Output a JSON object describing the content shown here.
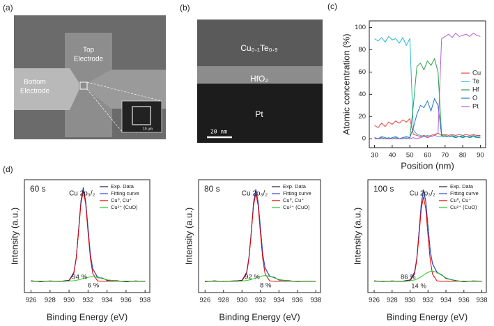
{
  "panel_labels": [
    "(a)",
    "(b)",
    "(c)",
    "(d)"
  ],
  "sem": {
    "top_electrode": [
      "Top",
      "Electrode"
    ],
    "bottom_electrode": [
      "Bottom",
      "Electrode"
    ],
    "inset_scale": "10 µm"
  },
  "tem": {
    "layer_top": "Cu₀.₁Te₀.₉",
    "layer_middle": "HfO₂",
    "layer_bottom": "Pt",
    "scale_bar": "20 nm"
  },
  "chart_data": [
    {
      "type": "line",
      "xlabel": "Position (nm)",
      "ylabel": "Atomic concentration (%)",
      "x": [
        30,
        32,
        34,
        36,
        38,
        40,
        42,
        44,
        46,
        48,
        50,
        52,
        54,
        56,
        58,
        60,
        62,
        64,
        66,
        68,
        70,
        72,
        74,
        76,
        78,
        80,
        82,
        84,
        86,
        88,
        90
      ],
      "xlim": [
        27,
        93
      ],
      "xticks": [
        30,
        40,
        50,
        60,
        70,
        80,
        90
      ],
      "ylim": [
        -8,
        106
      ],
      "yticks": [
        0,
        20,
        40,
        60,
        80,
        100
      ],
      "legend": "right",
      "series": [
        {
          "name": "Cu",
          "color": "#e8413c",
          "values": [
            12,
            10,
            14,
            11,
            15,
            13,
            16,
            14,
            17,
            15,
            18,
            4,
            3,
            2,
            3,
            2,
            3,
            4,
            5,
            3,
            4,
            3,
            4,
            3,
            4,
            3,
            4,
            3,
            4,
            3,
            3
          ]
        },
        {
          "name": "Te",
          "color": "#22b8c8",
          "values": [
            90,
            88,
            91,
            87,
            92,
            89,
            90,
            86,
            91,
            84,
            90,
            8,
            4,
            3,
            2,
            3,
            2,
            3,
            2,
            2,
            2,
            2,
            3,
            2,
            2,
            3,
            2,
            2,
            3,
            2,
            2
          ]
        },
        {
          "name": "Hf",
          "color": "#2aa04a",
          "values": [
            1,
            0,
            1,
            0,
            1,
            0,
            1,
            0,
            1,
            0,
            1,
            30,
            65,
            68,
            62,
            70,
            66,
            72,
            60,
            4,
            3,
            2,
            2,
            2,
            2,
            2,
            2,
            2,
            2,
            2,
            2
          ]
        },
        {
          "name": "O",
          "color": "#1f77d4",
          "values": [
            1,
            0,
            2,
            1,
            0,
            1,
            2,
            0,
            1,
            2,
            1,
            10,
            22,
            30,
            28,
            34,
            25,
            36,
            30,
            3,
            2,
            2,
            2,
            1,
            2,
            1,
            2,
            1,
            2,
            1,
            1
          ]
        },
        {
          "name": "Pt",
          "color": "#b45fd6",
          "values": [
            0,
            0,
            0,
            0,
            0,
            0,
            0,
            0,
            0,
            1,
            0,
            1,
            0,
            1,
            2,
            1,
            2,
            3,
            5,
            90,
            92,
            94,
            91,
            95,
            92,
            93,
            94,
            92,
            95,
            93,
            92
          ]
        }
      ]
    },
    {
      "type": "line",
      "label": "60 s",
      "peak_label": "Cu 2p₃/₂",
      "annotations": [
        "94 %",
        "6 %"
      ],
      "xlabel": "Binding Energy (eV)",
      "ylabel": "Intensity (a.u.)",
      "x": [
        926,
        927,
        928,
        929,
        929.5,
        930,
        930.5,
        930.75,
        931,
        931.25,
        931.5,
        931.75,
        932,
        932.25,
        932.5,
        933,
        933.5,
        934,
        935,
        936,
        937,
        938
      ],
      "xlim": [
        925.3,
        938.5
      ],
      "xticks": [
        926,
        928,
        930,
        932,
        934,
        936,
        938
      ],
      "ylim": [
        0,
        100
      ],
      "legend": "upper right",
      "series": [
        {
          "name": "Exp. Data",
          "color": "#1a1a4a",
          "values": [
            10.5,
            9.6,
            10.3,
            9.8,
            10.4,
            10.9,
            17.8,
            30.2,
            55.3,
            81.2,
            93.1,
            80.9,
            57.4,
            33.1,
            21.2,
            13.2,
            12.9,
            10.8,
            10.6,
            9.5,
            10.3,
            9.8
          ]
        },
        {
          "name": "Fitting curve",
          "color": "#2f4fd0",
          "values": [
            10,
            10,
            10,
            10,
            10,
            10.5,
            17.3,
            30.8,
            54.5,
            80.4,
            92.4,
            81.6,
            56.7,
            33.8,
            20.8,
            13.8,
            12.4,
            11.3,
            10.2,
            10,
            10,
            10
          ]
        },
        {
          "name": "Cu⁰, Cu⁺",
          "color": "#e00000",
          "values": [
            10,
            10,
            10,
            10,
            10,
            10.3,
            16.8,
            29.9,
            53.2,
            78.6,
            90,
            78.6,
            53.2,
            29.9,
            16.8,
            10.3,
            10,
            10,
            10,
            10,
            10,
            10
          ]
        },
        {
          "name": "Cu²⁺ (CuO)",
          "color": "#22cc22",
          "values": [
            10,
            10,
            10,
            10,
            10,
            10.2,
            10.5,
            10.9,
            11.3,
            11.8,
            12.4,
            13,
            13.5,
            13.9,
            14,
            13.5,
            12.4,
            11.3,
            10.2,
            10,
            10,
            10
          ]
        }
      ]
    },
    {
      "type": "line",
      "label": "80 s",
      "peak_label": "Cu 2p₃/₂",
      "annotations": [
        "92 %",
        "8 %"
      ],
      "xlabel": "Binding Energy (eV)",
      "ylabel": "Intensity (a.u.)",
      "x": [
        926,
        927,
        928,
        929,
        929.5,
        930,
        930.5,
        930.75,
        931,
        931.25,
        931.5,
        931.75,
        932,
        932.25,
        932.5,
        933,
        933.5,
        934,
        935,
        936,
        937,
        938
      ],
      "xlim": [
        925.3,
        938.5
      ],
      "xticks": [
        926,
        928,
        930,
        932,
        934,
        936,
        938
      ],
      "ylim": [
        0,
        100
      ],
      "legend": "upper right",
      "series": [
        {
          "name": "Exp. Data",
          "color": "#1a1a4a",
          "values": [
            9.6,
            10.4,
            9.8,
            10.3,
            10.5,
            10.9,
            17.9,
            31.2,
            53.1,
            79.8,
            91.6,
            80.1,
            57.2,
            33.6,
            22.1,
            14.2,
            13.5,
            11.1,
            10.6,
            9.7,
            10.2,
            9.9
          ]
        },
        {
          "name": "Fitting curve",
          "color": "#2f4fd0",
          "values": [
            10,
            10,
            10,
            10,
            10.1,
            10.5,
            17.3,
            30.5,
            53.7,
            79.1,
            91,
            80.6,
            56.5,
            34.2,
            21.6,
            14.7,
            13,
            11.6,
            10.2,
            10,
            10,
            10
          ]
        },
        {
          "name": "Cu⁰, Cu⁺",
          "color": "#e00000",
          "values": [
            10,
            10,
            10,
            10,
            10,
            10.3,
            16.6,
            29.4,
            52.1,
            76.8,
            88,
            76.8,
            52.1,
            29.4,
            16.6,
            10.3,
            10,
            10,
            10,
            10,
            10,
            10
          ]
        },
        {
          "name": "Cu²⁺ (CuO)",
          "color": "#22cc22",
          "values": [
            10,
            10,
            10,
            10,
            10.1,
            10.2,
            10.7,
            11.1,
            11.6,
            12.3,
            13,
            13.8,
            14.4,
            14.8,
            15,
            14.4,
            13,
            11.6,
            10.2,
            10,
            10,
            10
          ]
        }
      ]
    },
    {
      "type": "line",
      "label": "100 s",
      "peak_label": "Cu 2p₃/₂",
      "annotations": [
        "86 %",
        "14 %"
      ],
      "xlabel": "Binding Energy (eV)",
      "ylabel": "Intensity (a.u.)",
      "x": [
        926,
        927,
        928,
        929,
        929.5,
        930,
        930.5,
        930.75,
        931,
        931.25,
        931.5,
        931.75,
        932,
        932.25,
        932.5,
        933,
        933.5,
        934,
        935,
        936,
        937,
        938
      ],
      "xlim": [
        925.3,
        938.5
      ],
      "xticks": [
        926,
        928,
        930,
        932,
        934,
        936,
        938
      ],
      "ylim": [
        0,
        100
      ],
      "legend": "upper right",
      "series": [
        {
          "name": "Exp. Data",
          "color": "#1a1a4a",
          "values": [
            10.4,
            9.7,
            10.3,
            9.9,
            10.6,
            11.2,
            18.1,
            30.1,
            54.2,
            79.1,
            91.2,
            80.4,
            59.1,
            36.8,
            25.9,
            17.6,
            15.9,
            12.4,
            10.8,
            9.6,
            10.3,
            10.1
          ]
        },
        {
          "name": "Fitting curve",
          "color": "#2f4fd0",
          "values": [
            10,
            10,
            10,
            10,
            10.1,
            10.7,
            17.6,
            30.6,
            53.4,
            78.4,
            90.5,
            81.1,
            58.4,
            37.4,
            25.4,
            18.2,
            15.5,
            12.9,
            10.4,
            10,
            10,
            10
          ]
        },
        {
          "name": "Cu⁰, Cu⁺",
          "color": "#e00000",
          "values": [
            10,
            10,
            10,
            10,
            10,
            10.3,
            16.4,
            28.7,
            50.5,
            74.3,
            85,
            74.3,
            50.5,
            28.7,
            16.4,
            10.3,
            10,
            10,
            10,
            10,
            10,
            10
          ]
        },
        {
          "name": "Cu²⁺ (CuO)",
          "color": "#22cc22",
          "values": [
            10,
            10,
            10,
            10,
            10.1,
            10.4,
            11.2,
            11.9,
            12.9,
            14.1,
            15.5,
            16.8,
            17.9,
            18.7,
            19,
            17.9,
            15.5,
            12.9,
            10.4,
            10,
            10,
            10
          ]
        }
      ]
    }
  ]
}
